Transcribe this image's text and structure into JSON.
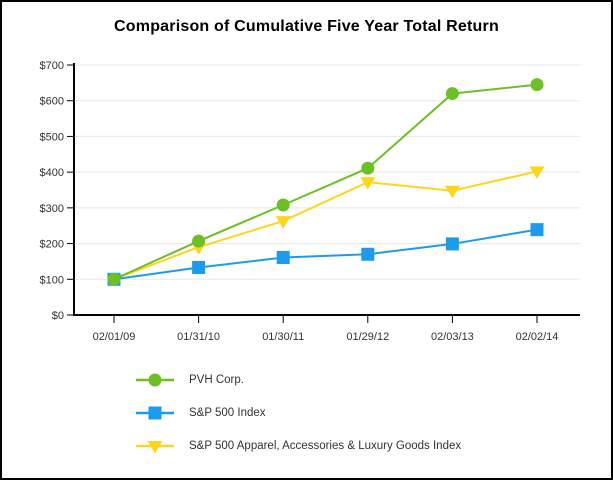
{
  "chart_data": {
    "type": "line",
    "title": "Comparison of Cumulative Five Year Total Return",
    "categories": [
      "02/01/09",
      "01/31/10",
      "01/30/11",
      "01/29/12",
      "02/03/13",
      "02/02/14"
    ],
    "y_ticks": [
      "$0",
      "$100",
      "$200",
      "$300",
      "$400",
      "$500",
      "$600",
      "$700"
    ],
    "ylim": [
      0,
      700
    ],
    "y_step": 100,
    "grid": "horizontal",
    "legend_position": "bottom-left",
    "series": [
      {
        "name": "PVH Corp.",
        "marker": "circle",
        "color": "#6DC024",
        "values": [
          100,
          207,
          308,
          411,
          620,
          645
        ]
      },
      {
        "name": "S&P 500 Index",
        "marker": "square",
        "color": "#1C9BEE",
        "values": [
          100,
          133,
          161,
          170,
          199,
          239
        ]
      },
      {
        "name": "S&P 500 Apparel, Accessories & Luxury Goods Index",
        "marker": "triangle-down",
        "color": "#FFD51C",
        "values": [
          100,
          190,
          263,
          372,
          348,
          402
        ]
      }
    ],
    "colors": {
      "axis": "#000000",
      "gridline": "#E8E8E8",
      "tick_label": "#333333",
      "title": "#000000",
      "background": "#FFFFFF",
      "border": "#000000"
    }
  }
}
